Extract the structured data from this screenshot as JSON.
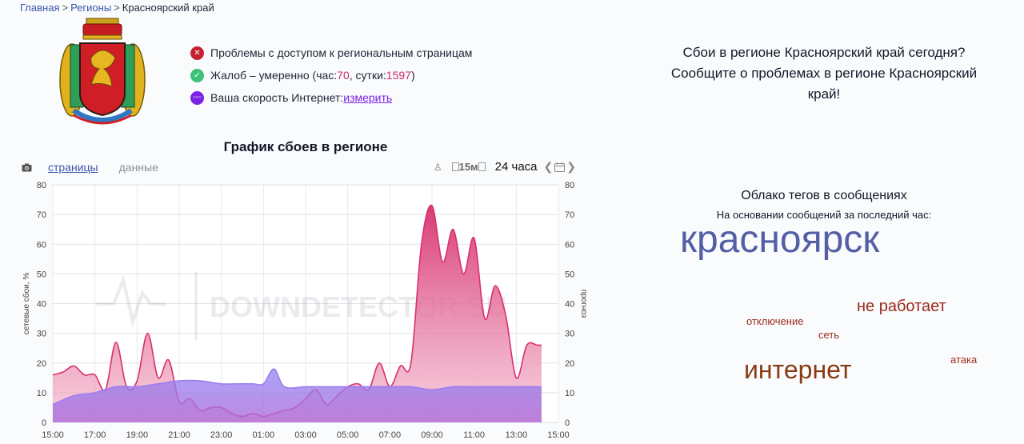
{
  "breadcrumb": {
    "home": "Главная",
    "regions": "Регионы",
    "current": "Красноярский край"
  },
  "status": {
    "access_problems": "Проблемы с доступом к региональным страницам",
    "complaints_prefix": "Жалоб – умеренно (час: ",
    "complaints_hour": "70",
    "complaints_mid": ", сутки: ",
    "complaints_day": "1597",
    "complaints_suffix": ")",
    "speed_label": "Ваша скорость Интернет: ",
    "speed_link": "измерить"
  },
  "chart_section": {
    "title": "График сбоев в регионе",
    "tab_pages": "страницы",
    "tab_data": "данные",
    "interval": "15м",
    "period": "24 часа"
  },
  "chart_data": {
    "type": "area",
    "xlabel": "",
    "ylabel_left": "сетевые сбои, %",
    "ylabel_right": "прогноз",
    "ylim": [
      0,
      80
    ],
    "y_ticks": [
      0,
      10,
      20,
      30,
      40,
      50,
      60,
      70,
      80
    ],
    "x_ticks": [
      "15:00",
      "17:00",
      "19:00",
      "21:00",
      "23:00",
      "01:00",
      "03:00",
      "05:00",
      "07:00",
      "09:00",
      "11:00",
      "13:00",
      "15:00"
    ],
    "x_range_hours": [
      0,
      24
    ],
    "watermark": "DOWNDETECTOR.SU",
    "series": [
      {
        "x": [
          0,
          0.5,
          1,
          1.5,
          2,
          2.5,
          3,
          3.5,
          4,
          4.5,
          5,
          5.5,
          6,
          6.5,
          7,
          7.5,
          8,
          8.5,
          9,
          9.5,
          10,
          10.5,
          11,
          11.5,
          12,
          12.5,
          13,
          13.5,
          14,
          14.5,
          15,
          15.5,
          16,
          16.5,
          17,
          17.5,
          18,
          18.5,
          19,
          19.5,
          20,
          20.5,
          21,
          21.5,
          22,
          22.5,
          23,
          23.2
        ],
        "values": [
          16,
          17,
          19,
          16,
          16,
          11,
          27,
          12,
          14,
          30,
          15,
          21,
          7,
          8,
          4,
          5,
          5,
          3,
          2,
          3,
          2,
          3,
          4,
          5,
          8,
          11,
          6,
          9,
          12,
          13,
          11,
          20,
          12,
          19,
          20,
          60,
          73,
          54,
          65,
          50,
          62,
          35,
          46,
          36,
          15,
          26,
          26,
          26
        ]
      },
      {
        "x": [
          0,
          1,
          2,
          3,
          4,
          5,
          6,
          7,
          8,
          9,
          9.5,
          10,
          10.5,
          11,
          12,
          13,
          14,
          15,
          16,
          17,
          18,
          19,
          20,
          21,
          22,
          23,
          23.2
        ],
        "values": [
          6,
          9,
          10,
          12,
          12,
          13,
          14,
          14,
          13,
          13,
          13,
          13,
          18,
          12,
          12,
          12,
          12,
          12,
          12,
          12,
          11,
          12,
          12,
          12,
          12,
          12,
          12
        ]
      }
    ],
    "colors": {
      "reports": "#d8306e",
      "forecast": "#9b7cf0"
    }
  },
  "cta": {
    "line1": "Сбои в регионе Красноярский край сегодня?",
    "line2": "Сообщите о проблемах в регионе Красноярский",
    "line3": "край!"
  },
  "tag_cloud": {
    "title": "Облако тегов в сообщениях",
    "subtitle": "На основании сообщений за последний час:",
    "tags": [
      {
        "text": "красноярск",
        "color": "#545ea4"
      },
      {
        "text": "не работает",
        "color": "#9a2a1b"
      },
      {
        "text": "отключение",
        "color": "#9a2a1b"
      },
      {
        "text": "сеть",
        "color": "#9a2a1b"
      },
      {
        "text": "атака",
        "color": "#9a2a1b"
      },
      {
        "text": "интернет",
        "color": "#8a3a12"
      }
    ]
  }
}
